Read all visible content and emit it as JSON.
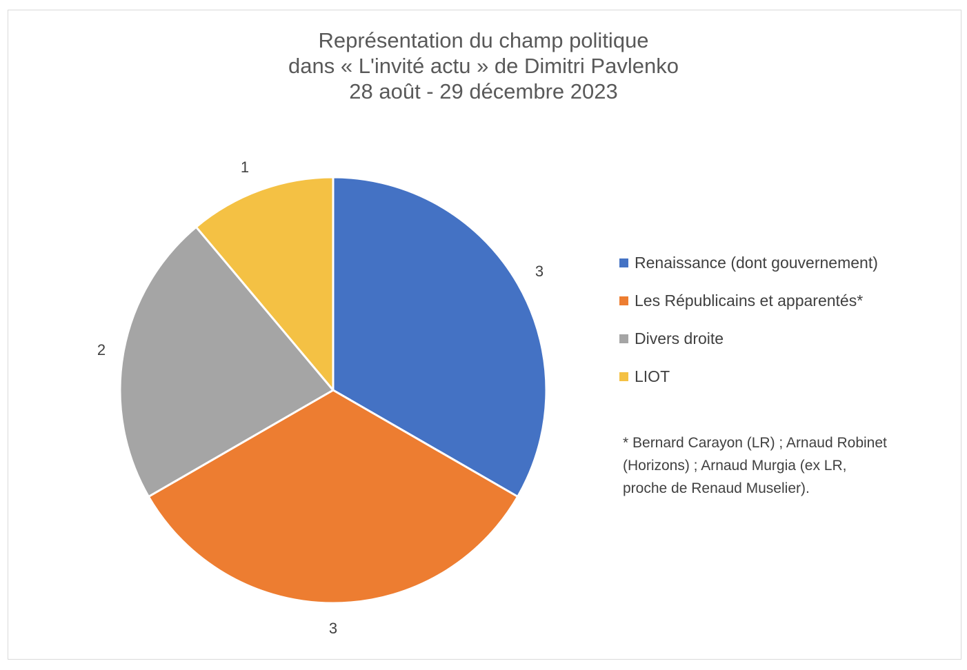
{
  "chart_data": {
    "type": "pie",
    "title": [
      "Représentation du champ politique",
      "dans « L'invité actu » de Dimitri Pavlenko",
      "28 août - 29 décembre 2023"
    ],
    "series": [
      {
        "name": "Renaissance (dont gouvernement)",
        "value": 3,
        "label": "3",
        "color": "#4472C4"
      },
      {
        "name": "Les Républicains et apparentés*",
        "value": 3,
        "label": "3",
        "color": "#ED7D31"
      },
      {
        "name": "Divers droite",
        "value": 2,
        "label": "2",
        "color": "#A5A5A5"
      },
      {
        "name": "LIOT",
        "value": 1,
        "label": "1",
        "color": "#F4C144"
      }
    ],
    "legend_position": "right",
    "footnote": [
      "* Bernard Carayon (LR) ; Arnaud Robinet",
      "(Horizons) ; Arnaud Murgia (ex LR,",
      "proche de Renaud Muselier)."
    ]
  }
}
